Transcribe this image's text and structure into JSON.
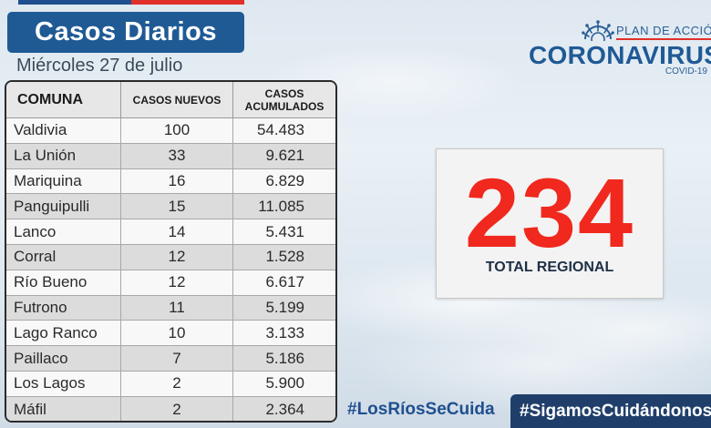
{
  "header": {
    "title": "Casos Diarios",
    "date": "Miércoles 27 de julio"
  },
  "logo": {
    "plan": "PLAN DE ACCIÓN",
    "brand": "CORONAVIRUS",
    "sub": "COVID-19"
  },
  "table": {
    "columns": [
      "COMUNA",
      "CASOS NUEVOS",
      "CASOS ACUMULADOS"
    ],
    "rows": [
      {
        "comuna": "Valdivia",
        "nuevos": "100",
        "acumulados": "54.483"
      },
      {
        "comuna": "La Unión",
        "nuevos": "33",
        "acumulados": "9.621"
      },
      {
        "comuna": "Mariquina",
        "nuevos": "16",
        "acumulados": "6.829"
      },
      {
        "comuna": "Panguipulli",
        "nuevos": "15",
        "acumulados": "11.085"
      },
      {
        "comuna": "Lanco",
        "nuevos": "14",
        "acumulados": "5.431"
      },
      {
        "comuna": "Corral",
        "nuevos": "12",
        "acumulados": "1.528"
      },
      {
        "comuna": "Río Bueno",
        "nuevos": "12",
        "acumulados": "6.617"
      },
      {
        "comuna": "Futrono",
        "nuevos": "11",
        "acumulados": "5.199"
      },
      {
        "comuna": "Lago Ranco",
        "nuevos": "10",
        "acumulados": "3.133"
      },
      {
        "comuna": "Paillaco",
        "nuevos": "7",
        "acumulados": "5.186"
      },
      {
        "comuna": "Los Lagos",
        "nuevos": "2",
        "acumulados": "5.900"
      },
      {
        "comuna": "Máfil",
        "nuevos": "2",
        "acumulados": "2.364"
      }
    ]
  },
  "total": {
    "value": "234",
    "label": "TOTAL REGIONAL"
  },
  "hashtags": {
    "primary": "#LosRíosSeCuida",
    "secondary": "#SigamosCuidándonos"
  },
  "colors": {
    "brand_blue": "#1f5a95",
    "accent_red": "#f0281e",
    "dark_navy": "#1f3f6a"
  }
}
